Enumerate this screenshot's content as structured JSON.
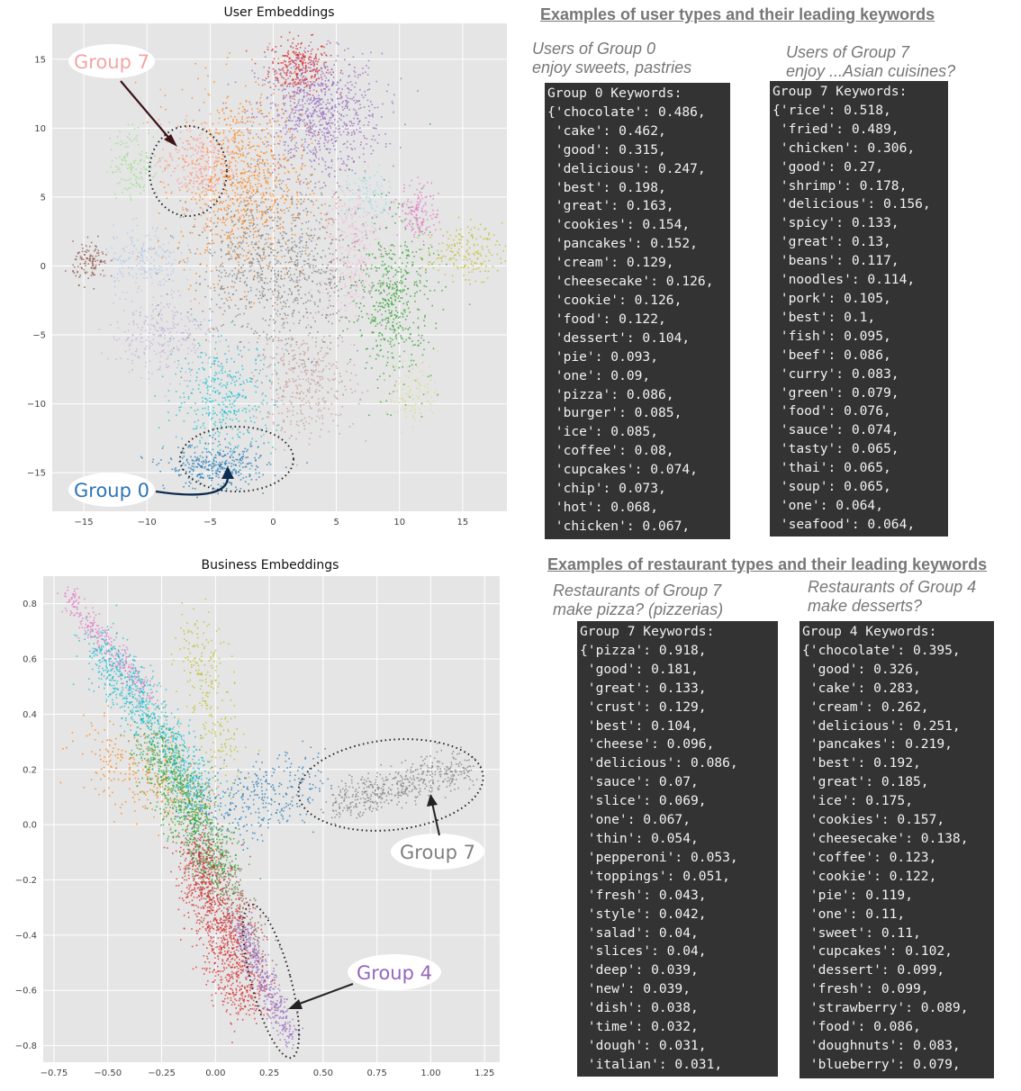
{
  "chart_data": [
    {
      "type": "scatter",
      "title": "User Embeddings",
      "xlim": [
        -17.5,
        18.5
      ],
      "ylim": [
        -17.8,
        17.6
      ],
      "xticks": [
        -15,
        -10,
        -5,
        0,
        5,
        10,
        15
      ],
      "yticks": [
        15,
        10,
        5,
        0,
        -5,
        -10,
        -15
      ],
      "xtick_labels": [
        "−15",
        "−10",
        "−5",
        "0",
        "5",
        "10",
        "15"
      ],
      "ytick_labels": [
        "15",
        "10",
        "5",
        "0",
        "−5",
        "−10",
        "−15"
      ],
      "grid": true,
      "clusters": [
        {
          "color": "#d62728",
          "center": [
            2.0,
            14.5
          ],
          "spread": [
            1.2,
            1.0
          ],
          "n": 280
        },
        {
          "color": "#9467bd",
          "center": [
            3.5,
            11.0
          ],
          "spread": [
            2.5,
            2.2
          ],
          "n": 900
        },
        {
          "color": "#ff7f0e",
          "center": [
            -2.5,
            6.0
          ],
          "spread": [
            2.5,
            3.5
          ],
          "n": 900
        },
        {
          "color": "#ff9896",
          "center": [
            -6.0,
            7.5
          ],
          "spread": [
            1.5,
            1.5
          ],
          "n": 280
        },
        {
          "color": "#98df8a",
          "center": [
            -11.0,
            7.5
          ],
          "spread": [
            1.0,
            1.3
          ],
          "n": 150
        },
        {
          "color": "#aec7e8",
          "center": [
            -10.5,
            0.5
          ],
          "spread": [
            1.5,
            1.2
          ],
          "n": 200
        },
        {
          "color": "#8c564b",
          "center": [
            -14.5,
            0.3
          ],
          "spread": [
            0.7,
            0.7
          ],
          "n": 120
        },
        {
          "color": "#7f7f7f",
          "center": [
            0.5,
            0.0
          ],
          "spread": [
            3.5,
            3.0
          ],
          "n": 1000
        },
        {
          "color": "#c5b0d5",
          "center": [
            -9.0,
            -5.0
          ],
          "spread": [
            2.0,
            1.5
          ],
          "n": 300
        },
        {
          "color": "#17becf",
          "center": [
            -4.0,
            -9.5
          ],
          "spread": [
            2.0,
            2.0
          ],
          "n": 400
        },
        {
          "color": "#1f77b4",
          "center": [
            -4.5,
            -14.5
          ],
          "spread": [
            2.0,
            0.8
          ],
          "n": 350
        },
        {
          "color": "#c49c94",
          "center": [
            2.5,
            -8.5
          ],
          "spread": [
            2.0,
            2.0
          ],
          "n": 400
        },
        {
          "color": "#f7b6d2",
          "center": [
            6.0,
            1.5
          ],
          "spread": [
            1.2,
            2.5
          ],
          "n": 300
        },
        {
          "color": "#2ca02c",
          "center": [
            9.5,
            -2.5
          ],
          "spread": [
            1.5,
            3.0
          ],
          "n": 500
        },
        {
          "color": "#bcbd22",
          "center": [
            15.0,
            1.0
          ],
          "spread": [
            1.5,
            1.0
          ],
          "n": 180
        },
        {
          "color": "#dbdb8d",
          "center": [
            11.0,
            -9.0
          ],
          "spread": [
            1.0,
            1.2
          ],
          "n": 120
        },
        {
          "color": "#e377c2",
          "center": [
            11.5,
            4.0
          ],
          "spread": [
            0.8,
            1.0
          ],
          "n": 150
        },
        {
          "color": "#9edae5",
          "center": [
            7.5,
            5.0
          ],
          "spread": [
            1.0,
            1.0
          ],
          "n": 100
        }
      ],
      "annotations": [
        {
          "label": "Group 7",
          "color": "#f4a5a5"
        },
        {
          "label": "Group 0",
          "color": "#2e75b6"
        }
      ]
    },
    {
      "type": "scatter",
      "title": "Business Embeddings",
      "xlim": [
        -0.8,
        1.32
      ],
      "ylim": [
        -0.86,
        0.9
      ],
      "xticks": [
        -0.75,
        -0.5,
        -0.25,
        0.0,
        0.25,
        0.5,
        0.75,
        1.0,
        1.25
      ],
      "yticks": [
        0.8,
        0.6,
        0.4,
        0.2,
        0.0,
        -0.2,
        -0.4,
        -0.6,
        -0.8
      ],
      "xtick_labels": [
        "−0.75",
        "−0.50",
        "−0.25",
        "0.00",
        "0.25",
        "0.50",
        "0.75",
        "1.00",
        "1.25"
      ],
      "ytick_labels": [
        "0.8",
        "0.6",
        "0.4",
        "0.2",
        "0.0",
        "−0.2",
        "−0.4",
        "−0.6",
        "−0.8"
      ],
      "grid": true,
      "clusters": [
        {
          "color": "#e377c2",
          "line": [
            [
              -0.7,
              0.84
            ],
            [
              -0.3,
              0.45
            ]
          ],
          "spread": 0.025,
          "n": 300
        },
        {
          "color": "#17becf",
          "line": [
            [
              -0.55,
              0.65
            ],
            [
              -0.05,
              0.1
            ]
          ],
          "spread": 0.05,
          "n": 900
        },
        {
          "color": "#ff7f0e",
          "line": [
            [
              -0.55,
              0.25
            ],
            [
              -0.1,
              0.1
            ]
          ],
          "spread": 0.08,
          "n": 300
        },
        {
          "color": "#bcbd22",
          "line": [
            [
              -0.1,
              0.7
            ],
            [
              0.05,
              0.2
            ]
          ],
          "spread": 0.06,
          "n": 250
        },
        {
          "color": "#1f77b4",
          "line": [
            [
              -0.05,
              0.05
            ],
            [
              0.45,
              0.15
            ]
          ],
          "spread": 0.07,
          "n": 350
        },
        {
          "color": "#2ca02c",
          "line": [
            [
              -0.3,
              0.3
            ],
            [
              0.05,
              -0.2
            ]
          ],
          "spread": 0.06,
          "n": 900
        },
        {
          "color": "#8c564b",
          "line": [
            [
              -0.1,
              -0.05
            ],
            [
              0.2,
              -0.45
            ]
          ],
          "spread": 0.05,
          "n": 300
        },
        {
          "color": "#d62728",
          "line": [
            [
              -0.1,
              -0.1
            ],
            [
              0.15,
              -0.65
            ]
          ],
          "spread": 0.06,
          "n": 1000
        },
        {
          "color": "#9467bd",
          "line": [
            [
              0.1,
              -0.35
            ],
            [
              0.35,
              -0.78
            ]
          ],
          "spread": 0.03,
          "n": 400
        },
        {
          "color": "#7f7f7f",
          "line": [
            [
              0.55,
              0.08
            ],
            [
              1.18,
              0.21
            ]
          ],
          "spread": 0.035,
          "n": 500
        }
      ],
      "annotations": [
        {
          "label": "Group 7",
          "color": "#7f7f7f"
        },
        {
          "label": "Group 4",
          "color": "#9467bd"
        }
      ]
    }
  ],
  "user_section": {
    "heading": "Examples of user types and their leading keywords",
    "captions": [
      [
        "Users of Group 0",
        "enjoy sweets, pastries"
      ],
      [
        "Users of Group 7",
        "enjoy ...Asian cuisines?"
      ]
    ],
    "boxes": [
      [
        "Group 0 Keywords:",
        "{'chocolate': 0.486,",
        " 'cake': 0.462,",
        " 'good': 0.315,",
        " 'delicious': 0.247,",
        " 'best': 0.198,",
        " 'great': 0.163,",
        " 'cookies': 0.154,",
        " 'pancakes': 0.152,",
        " 'cream': 0.129,",
        " 'cheesecake': 0.126,",
        " 'cookie': 0.126,",
        " 'food': 0.122,",
        " 'dessert': 0.104,",
        " 'pie': 0.093,",
        " 'one': 0.09,",
        " 'pizza': 0.086,",
        " 'burger': 0.085,",
        " 'ice': 0.085,",
        " 'coffee': 0.08,",
        " 'cupcakes': 0.074,",
        " 'chip': 0.073,",
        " 'hot': 0.068,",
        " 'chicken': 0.067,"
      ],
      [
        "Group 7 Keywords:",
        "{'rice': 0.518,",
        " 'fried': 0.489,",
        " 'chicken': 0.306,",
        " 'good': 0.27,",
        " 'shrimp': 0.178,",
        " 'delicious': 0.156,",
        " 'spicy': 0.133,",
        " 'great': 0.13,",
        " 'beans': 0.117,",
        " 'noodles': 0.114,",
        " 'pork': 0.105,",
        " 'best': 0.1,",
        " 'fish': 0.095,",
        " 'beef': 0.086,",
        " 'curry': 0.083,",
        " 'green': 0.079,",
        " 'food': 0.076,",
        " 'sauce': 0.074,",
        " 'tasty': 0.065,",
        " 'thai': 0.065,",
        " 'soup': 0.065,",
        " 'one': 0.064,",
        " 'seafood': 0.064,"
      ]
    ]
  },
  "restaurant_section": {
    "heading": "Examples of restaurant types and their leading keywords",
    "captions": [
      [
        "Restaurants of Group 7",
        "make pizza? (pizzerias)"
      ],
      [
        "Restaurants of Group 4",
        "make desserts?"
      ]
    ],
    "boxes": [
      [
        "Group 7 Keywords:",
        "{'pizza': 0.918,",
        " 'good': 0.181,",
        " 'great': 0.133,",
        " 'crust': 0.129,",
        " 'best': 0.104,",
        " 'cheese': 0.096,",
        " 'delicious': 0.086,",
        " 'sauce': 0.07,",
        " 'slice': 0.069,",
        " 'one': 0.067,",
        " 'thin': 0.054,",
        " 'pepperoni': 0.053,",
        " 'toppings': 0.051,",
        " 'fresh': 0.043,",
        " 'style': 0.042,",
        " 'salad': 0.04,",
        " 'slices': 0.04,",
        " 'deep': 0.039,",
        " 'new': 0.039,",
        " 'dish': 0.038,",
        " 'time': 0.032,",
        " 'dough': 0.031,",
        " 'italian': 0.031,"
      ],
      [
        "Group 4 Keywords:",
        "{'chocolate': 0.395,",
        " 'good': 0.326,",
        " 'cake': 0.283,",
        " 'cream': 0.262,",
        " 'delicious': 0.251,",
        " 'pancakes': 0.219,",
        " 'best': 0.192,",
        " 'great': 0.185,",
        " 'ice': 0.175,",
        " 'cookies': 0.157,",
        " 'cheesecake': 0.138,",
        " 'coffee': 0.123,",
        " 'cookie': 0.122,",
        " 'pie': 0.119,",
        " 'one': 0.11,",
        " 'sweet': 0.11,",
        " 'cupcakes': 0.102,",
        " 'dessert': 0.099,",
        " 'fresh': 0.099,",
        " 'strawberry': 0.089,",
        " 'food': 0.086,",
        " 'doughnuts': 0.083,",
        " 'blueberry': 0.079,"
      ]
    ]
  }
}
